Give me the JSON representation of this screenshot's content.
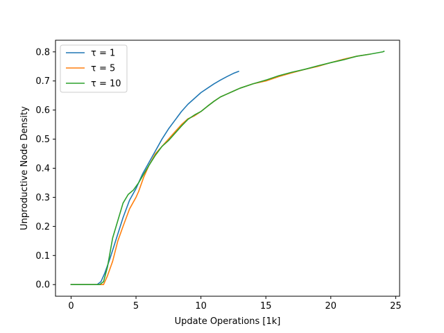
{
  "chart_data": {
    "type": "line",
    "title": "",
    "xlabel": "Update Operations [1k]",
    "ylabel": "Unproductive Node Density",
    "xlim": [
      -1.2,
      25.3
    ],
    "ylim": [
      -0.04,
      0.84
    ],
    "xticks": [
      0,
      5,
      10,
      15,
      20,
      25
    ],
    "yticks": [
      0.0,
      0.1,
      0.2,
      0.3,
      0.4,
      0.5,
      0.6,
      0.7,
      0.8
    ],
    "xtick_labels": [
      "0",
      "5",
      "10",
      "15",
      "20",
      "25"
    ],
    "ytick_labels": [
      "0.0",
      "0.1",
      "0.2",
      "0.3",
      "0.4",
      "0.5",
      "0.6",
      "0.7",
      "0.8"
    ],
    "grid": false,
    "legend_position": "upper-left",
    "series": [
      {
        "name": "τ = 1",
        "color": "#1f77b4",
        "x": [
          0,
          1,
          2,
          2.3,
          2.6,
          3,
          3.5,
          4,
          4.5,
          5,
          5.5,
          6,
          6.5,
          7,
          7.5,
          8,
          8.5,
          9,
          9.5,
          10,
          10.5,
          11,
          11.5,
          12,
          12.5,
          12.9
        ],
        "y": [
          0,
          0,
          0,
          0.01,
          0.04,
          0.09,
          0.16,
          0.23,
          0.29,
          0.33,
          0.38,
          0.42,
          0.46,
          0.5,
          0.535,
          0.565,
          0.595,
          0.62,
          0.64,
          0.66,
          0.675,
          0.69,
          0.703,
          0.715,
          0.726,
          0.733
        ]
      },
      {
        "name": "τ = 5",
        "color": "#ff7f0e",
        "x": [
          0,
          1,
          2,
          2.5,
          2.8,
          3.2,
          3.6,
          4,
          4.5,
          5,
          5.2,
          5.6,
          6,
          6.5,
          7,
          7.5,
          8,
          8.5,
          9,
          9.5,
          10,
          10.5,
          11,
          11.5,
          12,
          12.5,
          13,
          14,
          15,
          16,
          17,
          18,
          19,
          20,
          21,
          22,
          23
        ],
        "y": [
          0,
          0,
          0,
          0.0,
          0.03,
          0.08,
          0.15,
          0.2,
          0.26,
          0.3,
          0.32,
          0.37,
          0.41,
          0.45,
          0.475,
          0.5,
          0.525,
          0.55,
          0.57,
          0.58,
          0.595,
          0.613,
          0.63,
          0.645,
          0.655,
          0.665,
          0.675,
          0.69,
          0.7,
          0.715,
          0.728,
          0.74,
          0.75,
          0.763,
          0.775,
          0.785,
          0.792
        ]
      },
      {
        "name": "τ = 10",
        "color": "#2ca02c",
        "x": [
          0,
          1,
          2,
          2.2,
          2.5,
          2.8,
          3.2,
          3.6,
          4,
          4.4,
          4.8,
          5.2,
          5.6,
          6,
          6.5,
          7,
          7.5,
          8,
          8.5,
          9,
          9.5,
          10,
          10.5,
          11,
          11.5,
          12,
          12.5,
          13,
          14,
          15,
          16,
          17,
          18,
          19,
          20,
          21,
          22,
          23,
          24,
          24.1
        ],
        "y": [
          0,
          0,
          0,
          0.0,
          0.01,
          0.06,
          0.16,
          0.22,
          0.28,
          0.31,
          0.325,
          0.35,
          0.38,
          0.41,
          0.445,
          0.475,
          0.495,
          0.52,
          0.545,
          0.568,
          0.583,
          0.595,
          0.613,
          0.63,
          0.645,
          0.655,
          0.665,
          0.675,
          0.69,
          0.703,
          0.718,
          0.73,
          0.74,
          0.752,
          0.763,
          0.773,
          0.785,
          0.792,
          0.8,
          0.802
        ]
      }
    ]
  }
}
